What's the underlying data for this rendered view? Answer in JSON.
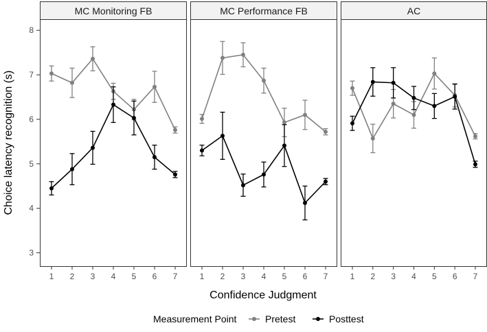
{
  "chart_data": {
    "type": "line",
    "ylabel": "Choice latency recognition (s)",
    "xlabel": "Confidence Judgment",
    "ylim": [
      2.7,
      8.25
    ],
    "yticks": [
      3,
      4,
      5,
      6,
      7,
      8
    ],
    "xticks": [
      1,
      2,
      3,
      4,
      5,
      6,
      7
    ],
    "legend": {
      "title": "Measurement Point",
      "position": "bottom",
      "entries": [
        "Pretest",
        "Posttest"
      ]
    },
    "colors": {
      "Pretest": "#808080",
      "Posttest": "#000000"
    },
    "panels": [
      {
        "title": "MC Monitoring FB",
        "series": [
          {
            "name": "Pretest",
            "values": [
              7.03,
              6.82,
              7.36,
              6.63,
              6.22,
              6.73,
              5.76
            ],
            "errors": [
              0.17,
              0.33,
              0.27,
              0.18,
              0.23,
              0.35,
              0.07
            ]
          },
          {
            "name": "Posttest",
            "values": [
              4.45,
              4.88,
              5.36,
              6.33,
              6.03,
              5.15,
              4.76
            ],
            "errors": [
              0.15,
              0.35,
              0.37,
              0.4,
              0.38,
              0.27,
              0.07
            ]
          }
        ]
      },
      {
        "title": "MC Performance FB",
        "series": [
          {
            "name": "Pretest",
            "values": [
              6.01,
              7.38,
              7.45,
              6.87,
              5.93,
              6.1,
              5.72
            ],
            "errors": [
              0.1,
              0.37,
              0.27,
              0.28,
              0.32,
              0.33,
              0.07
            ]
          },
          {
            "name": "Posttest",
            "values": [
              5.3,
              5.63,
              4.52,
              4.76,
              5.41,
              4.12,
              4.6
            ],
            "errors": [
              0.12,
              0.53,
              0.25,
              0.28,
              0.47,
              0.38,
              0.07
            ]
          }
        ]
      },
      {
        "title": "AC",
        "series": [
          {
            "name": "Pretest",
            "values": [
              6.7,
              5.57,
              6.35,
              6.1,
              7.03,
              6.54,
              5.62
            ],
            "errors": [
              0.16,
              0.32,
              0.32,
              0.3,
              0.35,
              0.26,
              0.06
            ]
          },
          {
            "name": "Posttest",
            "values": [
              5.91,
              6.84,
              6.82,
              6.48,
              6.3,
              6.51,
              4.99
            ],
            "errors": [
              0.16,
              0.32,
              0.34,
              0.26,
              0.28,
              0.28,
              0.07
            ]
          }
        ]
      }
    ]
  }
}
